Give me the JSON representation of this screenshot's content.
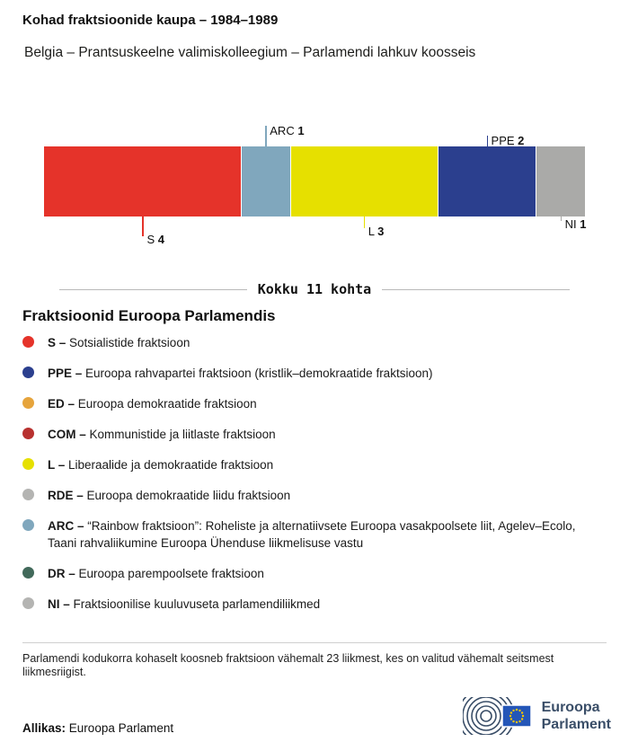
{
  "header": {
    "title": "Kohad fraktsioonide kaupa – 1984–1989",
    "subtitle": "Belgia – Prantsuskeelne valimiskolleegium – Parlamendi lahkuv koosseis"
  },
  "chart_data": {
    "type": "bar",
    "variant": "horizontal-stacked-seats",
    "title": "Kohad fraktsioonide kaupa – 1984–1989",
    "total_seats": 11,
    "total_label": "Kokku 11 kohta",
    "categories": [
      "S",
      "ARC",
      "L",
      "PPE",
      "NI"
    ],
    "values": [
      4,
      1,
      3,
      2,
      1
    ],
    "segments": [
      {
        "code": "S",
        "seats": 4,
        "color": "#e5332a",
        "label_side": "below",
        "line_len": 22
      },
      {
        "code": "ARC",
        "seats": 1,
        "color": "#80a7bd",
        "label_side": "above",
        "line_len": 23
      },
      {
        "code": "L",
        "seats": 3,
        "color": "#e6e000",
        "label_side": "below",
        "line_len": 13
      },
      {
        "code": "PPE",
        "seats": 2,
        "color": "#2b3f8e",
        "label_side": "above",
        "line_len": 12
      },
      {
        "code": "NI",
        "seats": 1,
        "color": "#aaaaa8",
        "label_side": "below",
        "line_len": 5
      }
    ]
  },
  "legend": {
    "heading": "Fraktsioonid Euroopa Parlamendis",
    "items": [
      {
        "code": "S –",
        "text": "Sotsialistide fraktsioon",
        "color": "#e5332a"
      },
      {
        "code": "PPE –",
        "text": "Euroopa rahvapartei fraktsioon (kristlik–demokraatide fraktsioon)",
        "color": "#2b3f8e"
      },
      {
        "code": "ED –",
        "text": "Euroopa demokraatide fraktsioon",
        "color": "#e6a43c"
      },
      {
        "code": "COM –",
        "text": "Kommunistide ja liitlaste fraktsioon",
        "color": "#b8312f"
      },
      {
        "code": "L –",
        "text": "Liberaalide ja demokraatide fraktsioon",
        "color": "#e6e000"
      },
      {
        "code": "RDE –",
        "text": "Euroopa demokraatide liidu fraktsioon",
        "color": "#b4b4b2"
      },
      {
        "code": "ARC –",
        "text": "“Rainbow fraktsioon”: Roheliste ja alternatiivsete Euroopa vasakpoolsete liit, Agelev–Ecolo, Taani rahvaliikumine Euroopa Ühenduse liikmelisuse vastu",
        "color": "#80a7bd"
      },
      {
        "code": "DR –",
        "text": "Euroopa parempoolsete fraktsioon",
        "color": "#41695a"
      },
      {
        "code": "NI –",
        "text": "Fraktsioonilise kuuluvuseta parlamendiliikmed",
        "color": "#b4b4b2"
      }
    ]
  },
  "footnote": "Parlamendi kodukorra kohaselt koosneb fraktsioon vähemalt 23 liikmest, kes on valitud vähemalt seitsmest liikmesriigist.",
  "source": {
    "label": "Allikas:",
    "text": "Euroopa Parlament"
  },
  "logo": {
    "line1": "Euroopa",
    "line2": "Parlament"
  }
}
